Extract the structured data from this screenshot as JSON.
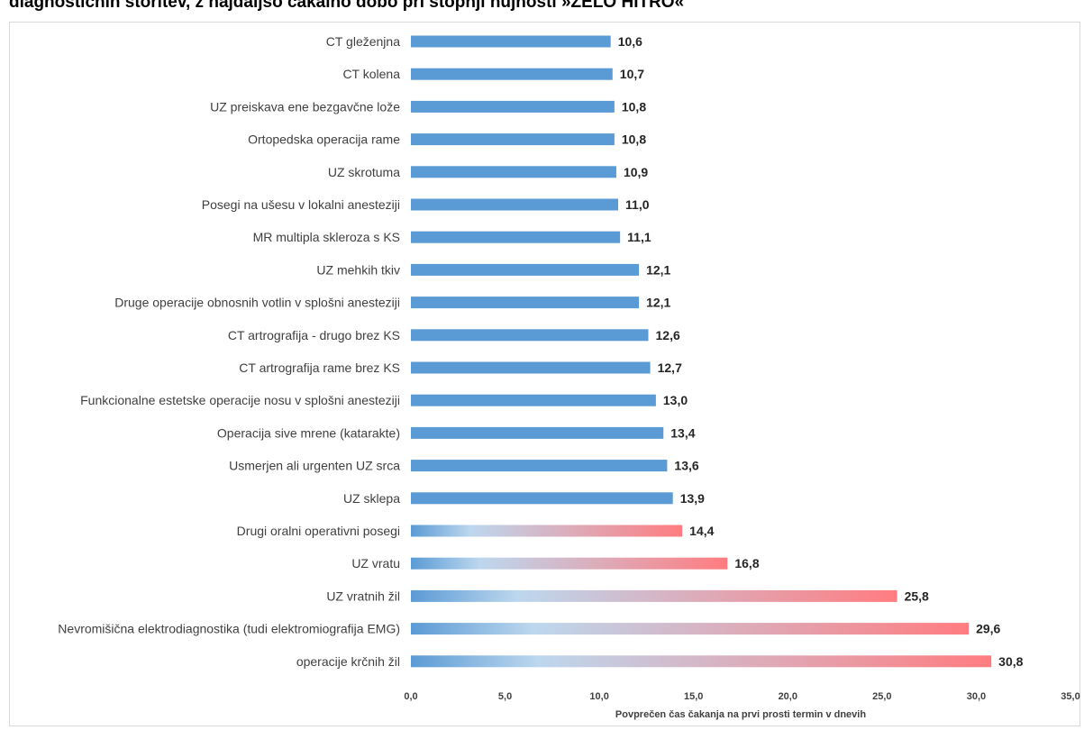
{
  "title": "diagnostičnih storitev, z najdaljšo čakalno dobo pri stopnji nujnosti »ZELO HITRO«",
  "colors": {
    "bar_blue": "#5b9bd5",
    "gradient_start": "#5b9bd5",
    "gradient_mid": "#bdd7ee",
    "gradient_end": "#ff7c80",
    "axis_text": "#404040",
    "value_text": "#262626"
  },
  "chart_data": {
    "type": "bar",
    "orientation": "horizontal",
    "title": "diagnostičnih storitev, z najdaljšo čakalno dobo pri stopnji nujnosti »ZELO HITRO«",
    "xlabel": "Povprečen čas čakanja na prvi prosti termin v dnevih",
    "ylabel": "",
    "xlim": [
      0,
      35
    ],
    "xticks": [
      0,
      5,
      10,
      15,
      20,
      25,
      30,
      35
    ],
    "xtick_labels": [
      "0,0",
      "5,0",
      "10,0",
      "15,0",
      "20,0",
      "25,0",
      "30,0",
      "35,0"
    ],
    "grid": false,
    "legend": "none",
    "categories": [
      "CT gleženjna",
      "CT kolena",
      "UZ preiskava ene bezgavčne lože",
      "Ortopedska operacija rame",
      "UZ skrotuma",
      "Posegi na ušesu v lokalni anesteziji",
      "MR multipla skleroza s KS",
      "UZ mehkih tkiv",
      "Druge operacije obnosnih votlin v splošni anesteziji",
      "CT artrografija - drugo brez KS",
      "CT artrografija rame brez KS",
      "Funkcionalne estetske operacije nosu v splošni anesteziji",
      "Operacija sive mrene (katarakte)",
      "Usmerjen ali urgenten UZ srca",
      "UZ sklepa",
      "Drugi oralni operativni posegi",
      "UZ vratu",
      "UZ vratnih žil",
      "Nevromišična elektrodiagnostika (tudi elektromiografija EMG)",
      "operacije krčnih žil"
    ],
    "values": [
      10.6,
      10.7,
      10.8,
      10.8,
      10.9,
      11.0,
      11.1,
      12.1,
      12.1,
      12.6,
      12.7,
      13.0,
      13.4,
      13.6,
      13.9,
      14.4,
      16.8,
      25.8,
      29.6,
      30.8
    ],
    "value_labels": [
      "10,6",
      "10,7",
      "10,8",
      "10,8",
      "10,9",
      "11,0",
      "11,1",
      "12,1",
      "12,1",
      "12,6",
      "12,7",
      "13,0",
      "13,4",
      "13,6",
      "13,9",
      "14,4",
      "16,8",
      "25,8",
      "29,6",
      "30,8"
    ],
    "fill": [
      "solid",
      "solid",
      "solid",
      "solid",
      "solid",
      "solid",
      "solid",
      "solid",
      "solid",
      "solid",
      "solid",
      "solid",
      "solid",
      "solid",
      "solid",
      "gradient",
      "gradient",
      "gradient",
      "gradient",
      "gradient"
    ]
  }
}
